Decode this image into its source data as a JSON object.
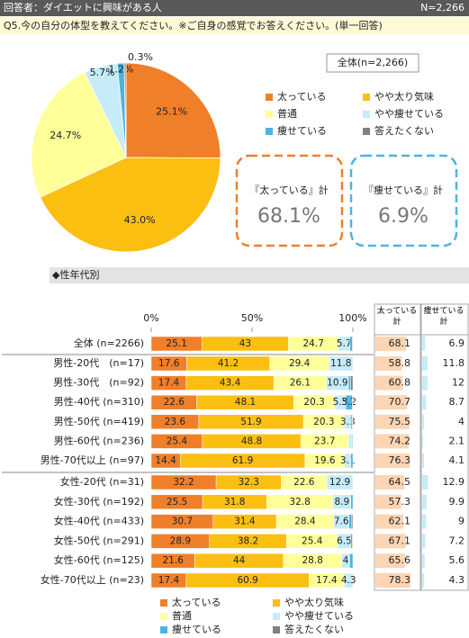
{
  "header": {
    "respondents": "回答者：ダイエットに興味がある人",
    "n": "N=2,266",
    "question": "Q5.今の自分の体型を教えてください。※ご自身の感覚でお答えください。(単一回答)",
    "section": "◆性年代別"
  },
  "summary": [
    {
      "label": "『太っている』計",
      "value": "68.1%"
    },
    {
      "label": "『痩せている』計",
      "value": "6.9%"
    }
  ],
  "chart_data": [
    {
      "type": "pie",
      "subtitle": "全体(n=2,266)",
      "categories": [
        "太っている",
        "やや太り気味",
        "普通",
        "やや痩せている",
        "痩せている",
        "答えたくない"
      ],
      "colors": [
        "#f07f2a",
        "#fbbf12",
        "#ffff99",
        "#c5ecf8",
        "#4eb3e0",
        "#808080"
      ],
      "values": [
        25.1,
        43.0,
        24.7,
        5.7,
        1.2,
        0.3
      ],
      "value_labels": [
        "25.1%",
        "43.0%",
        "24.7%",
        "5.7%",
        "1.2%",
        "0.3%"
      ]
    },
    {
      "type": "stacked_bar",
      "categories": [
        "全体 (n=2266)",
        "男性-20代　(n=17)",
        "男性-30代　(n=92)",
        "男性-40代 (n=310)",
        "男性-50代 (n=419)",
        "男性-60代 (n=236)",
        "男性-70代以上 (n=97)",
        "女性-20代 (n=31)",
        "女性-30代 (n=192)",
        "女性-40代 (n=433)",
        "女性-50代 (n=291)",
        "女性-60代 (n=125)",
        "女性-70代以上 (n=23)"
      ],
      "xlim": [
        0,
        100
      ],
      "xticks": [
        {
          "value": 0,
          "label": "0%"
        },
        {
          "value": 50,
          "label": "50%"
        },
        {
          "value": 100,
          "label": "100%"
        }
      ],
      "series": [
        {
          "name": "太っている",
          "color": "#f07f2a",
          "values": [
            25.1,
            17.6,
            17.4,
            22.6,
            23.6,
            25.4,
            14.4,
            32.2,
            25.5,
            30.7,
            28.9,
            21.6,
            17.4
          ]
        },
        {
          "name": "やや太り気味",
          "color": "#fbbf12",
          "values": [
            43,
            41.2,
            43.4,
            48.1,
            51.9,
            48.8,
            61.9,
            32.3,
            31.8,
            31.4,
            38.2,
            44,
            60.9
          ]
        },
        {
          "name": "普通",
          "color": "#ffff99",
          "values": [
            24.7,
            29.4,
            26.1,
            20.3,
            20.3,
            23.7,
            19.6,
            22.6,
            32.8,
            28.4,
            25.4,
            28.8,
            17.4
          ]
        },
        {
          "name": "やや痩せている",
          "color": "#c5ecf8",
          "values": [
            5.7,
            11.8,
            10.9,
            5.5,
            3.3,
            1.7,
            3.1,
            12.9,
            8.9,
            7.6,
            6.5,
            4,
            4.3
          ]
        },
        {
          "name": "痩せている",
          "color": "#4eb3e0",
          "values": [
            1.2,
            0,
            1.1,
            3.2,
            0.7,
            0.4,
            1.0,
            0,
            1.0,
            1.4,
            0.7,
            1.6,
            0
          ]
        },
        {
          "name": "答えたくない",
          "color": "#808080",
          "values": [
            0.3,
            0,
            1.1,
            0.3,
            0.2,
            0,
            0,
            0,
            0,
            0.5,
            0.3,
            0,
            0
          ]
        }
      ],
      "extra_columns": [
        {
          "name": "太っている計",
          "color": "#fcd5b4",
          "values": [
            68.1,
            58.8,
            60.8,
            70.7,
            75.5,
            74.2,
            76.3,
            64.5,
            57.3,
            62.1,
            67.1,
            65.6,
            78.3
          ]
        },
        {
          "name": "痩せている計",
          "color": "#c5ecf8",
          "values": [
            6.9,
            11.8,
            12.0,
            8.7,
            4.0,
            2.1,
            4.1,
            12.9,
            9.9,
            9.0,
            7.2,
            5.6,
            4.3
          ]
        }
      ]
    }
  ]
}
